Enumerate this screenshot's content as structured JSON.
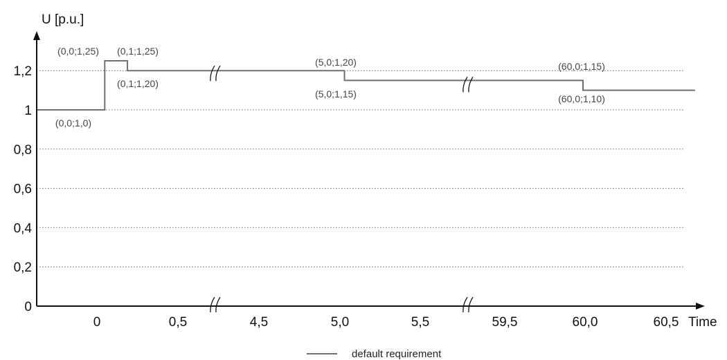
{
  "chart_data": {
    "type": "line",
    "ylabel": "U [p.u.]",
    "xlabel": "Time",
    "ylim": [
      0,
      1.3
    ],
    "y_ticks": [
      "0",
      "0,2",
      "0,4",
      "0,6",
      "0,8",
      "1",
      "1,2"
    ],
    "x_ticks": [
      "0",
      "0,5",
      "4,5",
      "5,0",
      "5,5",
      "59,5",
      "60,0",
      "60,5"
    ],
    "x_axis_breaks": [
      [
        0.5,
        4.5
      ],
      [
        5.5,
        59.5
      ]
    ],
    "grid": "horizontal dotted at 0.2, 0.4, 0.6, 0.8, 1.0, 1.2",
    "series": [
      {
        "name": "default requirement",
        "color": "#707070",
        "points": [
          {
            "x": -0.3,
            "y": 1.0
          },
          {
            "x": 0.0,
            "y": 1.0
          },
          {
            "x": 0.0,
            "y": 1.25
          },
          {
            "x": 0.1,
            "y": 1.25
          },
          {
            "x": 0.1,
            "y": 1.2
          },
          {
            "x": 5.0,
            "y": 1.2
          },
          {
            "x": 5.0,
            "y": 1.15
          },
          {
            "x": 60.0,
            "y": 1.15
          },
          {
            "x": 60.0,
            "y": 1.1
          },
          {
            "x": 60.5,
            "y": 1.1
          }
        ]
      }
    ],
    "annotations": [
      {
        "text": "(0,0;1,25)",
        "x": 0.0,
        "y": 1.25
      },
      {
        "text": "(0,1;1,25)",
        "x": 0.1,
        "y": 1.25
      },
      {
        "text": "(0,1;1,20)",
        "x": 0.1,
        "y": 1.2
      },
      {
        "text": "(0,0;1,0)",
        "x": 0.0,
        "y": 1.0
      },
      {
        "text": "(5,0;1,20)",
        "x": 5.0,
        "y": 1.2
      },
      {
        "text": "(5,0;1,15)",
        "x": 5.0,
        "y": 1.15
      },
      {
        "text": "(60,0;1,15)",
        "x": 60.0,
        "y": 1.15
      },
      {
        "text": "(60,0;1,10)",
        "x": 60.0,
        "y": 1.1
      }
    ],
    "legend": {
      "position": "bottom-center",
      "entries": [
        "default requirement"
      ]
    }
  }
}
